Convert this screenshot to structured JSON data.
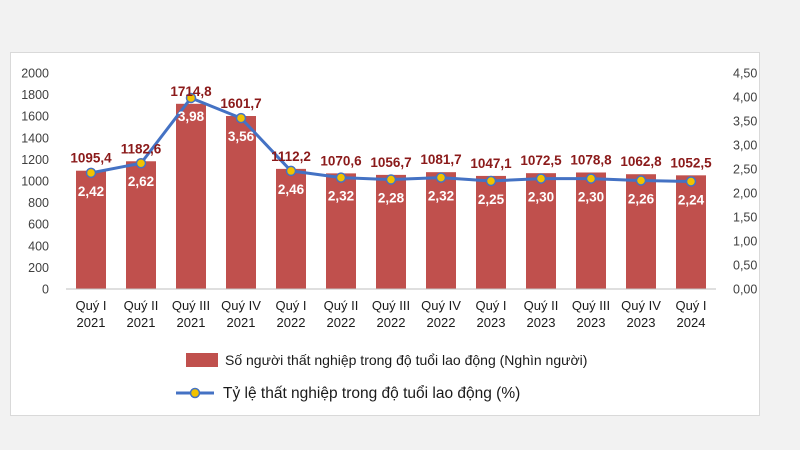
{
  "chart_data": {
    "type": "bar",
    "categories": [
      [
        "Quý I",
        "2021"
      ],
      [
        "Quý II",
        "2021"
      ],
      [
        "Quý III",
        "2021"
      ],
      [
        "Quý IV",
        "2021"
      ],
      [
        "Quý I",
        "2022"
      ],
      [
        "Quý II",
        "2022"
      ],
      [
        "Quý III",
        "2022"
      ],
      [
        "Quý IV",
        "2022"
      ],
      [
        "Quý I",
        "2023"
      ],
      [
        "Quý II",
        "2023"
      ],
      [
        "Quý III",
        "2023"
      ],
      [
        "Quý IV",
        "2023"
      ],
      [
        "Quý I",
        "2024"
      ]
    ],
    "series": [
      {
        "name": "Số người thất nghiệp trong độ tuổi lao động (Nghìn người)",
        "type": "bar",
        "axis": "left",
        "color": "#c0504d",
        "values": [
          1095.4,
          1182.6,
          1714.8,
          1601.7,
          1112.2,
          1070.6,
          1056.7,
          1081.7,
          1047.1,
          1072.5,
          1078.8,
          1062.8,
          1052.5
        ],
        "labels": [
          "1095,4",
          "1182,6",
          "1714,8",
          "1601,7",
          "1112,2",
          "1070,6",
          "1056,7",
          "1081,7",
          "1047,1",
          "1072,5",
          "1078,8",
          "1062,8",
          "1052,5"
        ]
      },
      {
        "name": "Tỷ lệ thất nghiệp trong độ tuổi lao động (%)",
        "type": "line",
        "axis": "right",
        "color": "#4472c4",
        "marker_color": "#f2c200",
        "values": [
          2.42,
          2.62,
          3.98,
          3.56,
          2.46,
          2.32,
          2.28,
          2.32,
          2.25,
          2.3,
          2.3,
          2.26,
          2.24
        ],
        "labels": [
          "2,42",
          "2,62",
          "3,98",
          "3,56",
          "2,46",
          "2,32",
          "2,28",
          "2,32",
          "2,25",
          "2,30",
          "2,30",
          "2,26",
          "2,24"
        ]
      }
    ],
    "y_left": {
      "ylim": [
        0,
        2000
      ],
      "ticks": [
        "0",
        "200",
        "400",
        "600",
        "800",
        "1000",
        "1200",
        "1400",
        "1600",
        "1800",
        "2000"
      ]
    },
    "y_right": {
      "ylim": [
        0,
        4.5
      ],
      "ticks": [
        "0,00",
        "0,50",
        "1,00",
        "1,50",
        "2,00",
        "2,50",
        "3,00",
        "3,50",
        "4,00",
        "4,50"
      ]
    },
    "grid": false,
    "legend": "bottom"
  }
}
